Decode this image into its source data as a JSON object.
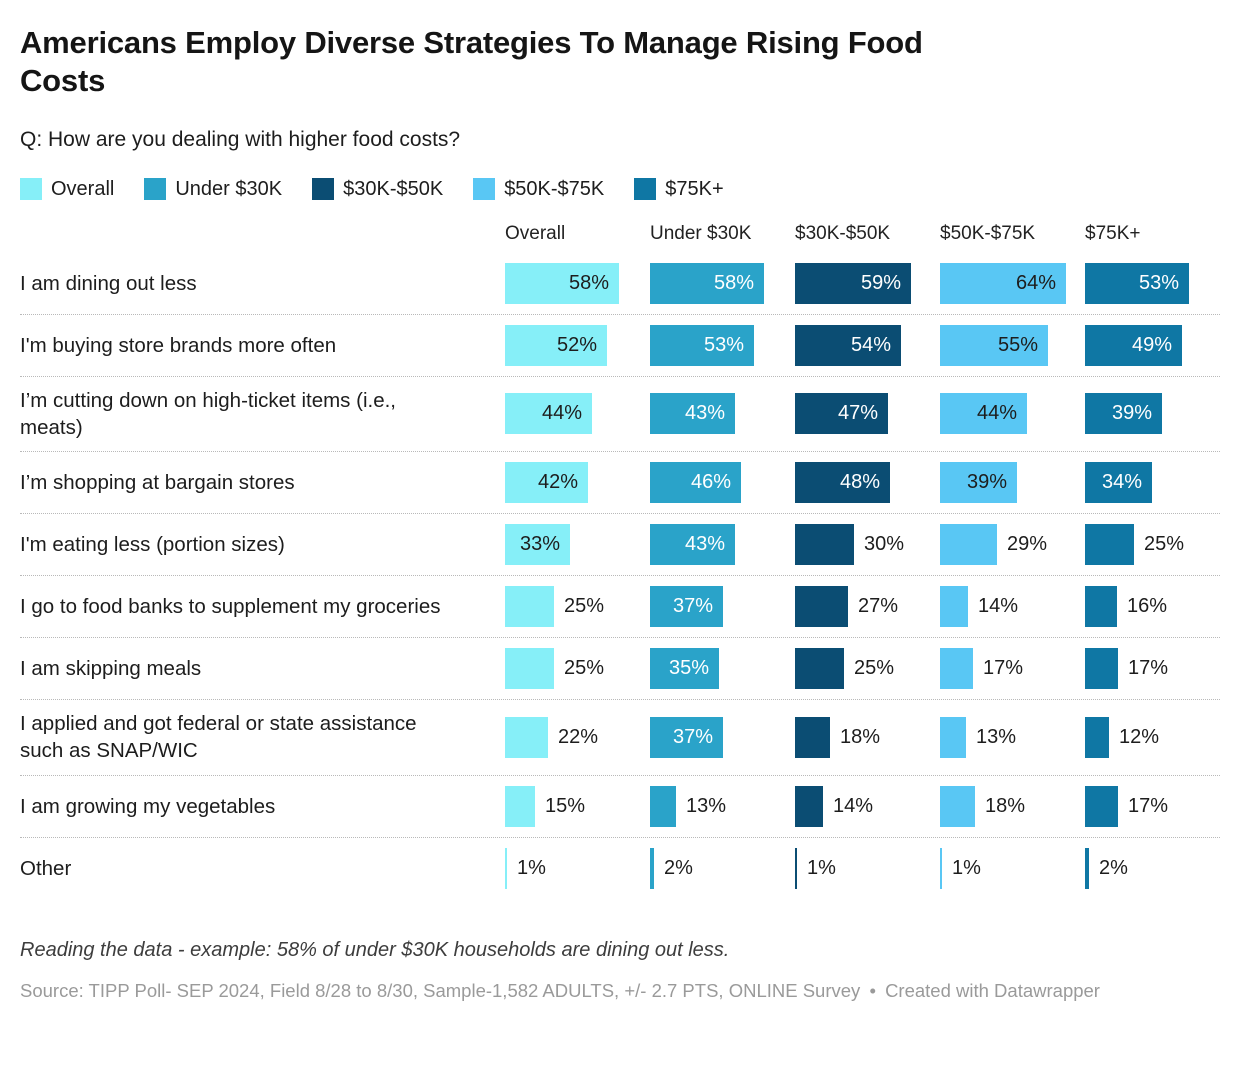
{
  "header": {
    "title": "Americans Employ Diverse Strategies To Manage Rising Food Costs",
    "question": "Q: How are you dealing with higher food costs?"
  },
  "columns": [
    "Overall",
    "Under $30K",
    "$30K-$50K",
    "$50K-$75K",
    "$75K+"
  ],
  "colors": {
    "overall": "#86EFF8",
    "under_30k": "#2AA3C9",
    "30k_50k": "#0B4D73",
    "50k_75k": "#59C7F4",
    "75k_plus": "#0F77A4",
    "text_dark": "#1d1d1d",
    "text_light": "#ffffff"
  },
  "chart_data": {
    "type": "bar",
    "orientation": "horizontal",
    "title": "Americans Employ Diverse Strategies To Manage Rising Food Costs",
    "subtitle": "Q: How are you dealing with higher food costs?",
    "legend_position": "top",
    "grid": false,
    "value_suffix": "%",
    "xlim": [
      0,
      64
    ],
    "categories": [
      "I am dining out less",
      "I'm buying store brands more often",
      "I’m cutting down on high-ticket items (i.e., meats)",
      "I’m shopping at bargain stores",
      "I'm eating less (portion sizes)",
      "I go to food banks to supplement my groceries",
      "I am skipping meals",
      "I applied and got federal or state assistance such as SNAP/WIC",
      "I am growing my vegetables",
      "Other"
    ],
    "series": [
      {
        "name": "Overall",
        "color": "#86EFF8",
        "values": [
          58,
          52,
          44,
          42,
          33,
          25,
          25,
          22,
          15,
          1
        ]
      },
      {
        "name": "Under $30K",
        "color": "#2AA3C9",
        "values": [
          58,
          53,
          43,
          46,
          43,
          37,
          35,
          37,
          13,
          2
        ]
      },
      {
        "name": "$30K-$50K",
        "color": "#0B4D73",
        "values": [
          59,
          54,
          47,
          48,
          30,
          27,
          25,
          18,
          14,
          1
        ]
      },
      {
        "name": "$50K-$75K",
        "color": "#59C7F4",
        "values": [
          64,
          55,
          44,
          39,
          29,
          14,
          17,
          13,
          18,
          1
        ]
      },
      {
        "name": "$75K+",
        "color": "#0F77A4",
        "values": [
          53,
          49,
          39,
          34,
          25,
          16,
          17,
          12,
          17,
          2
        ]
      }
    ]
  },
  "footer": {
    "reading": "Reading the data - example: 58% of under $30K households are dining out less.",
    "source": "Source: TIPP Poll- SEP 2024, Field 8/28 to 8/30, Sample-1,582 ADULTS, +/- 2.7 PTS, ONLINE Survey",
    "created": "Created with Datawrapper"
  }
}
